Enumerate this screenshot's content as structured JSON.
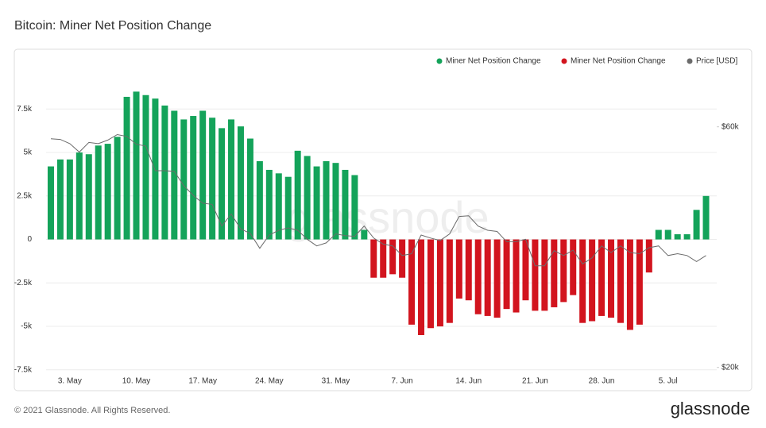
{
  "chart_data": {
    "type": "bar",
    "title": "Bitcoin: Miner Net Position Change",
    "footer": "© 2021 Glassnode. All Rights Reserved.",
    "logo": "glassnode",
    "watermark": "glassnode",
    "categories": [
      null,
      null,
      "3. May",
      null,
      null,
      null,
      null,
      null,
      null,
      "10. May",
      null,
      null,
      null,
      null,
      null,
      null,
      "17. May",
      null,
      null,
      null,
      null,
      null,
      null,
      "24. May",
      null,
      null,
      null,
      null,
      null,
      null,
      "31. May",
      null,
      null,
      null,
      null,
      null,
      null,
      "7. Jun",
      null,
      null,
      null,
      null,
      null,
      null,
      "14. Jun",
      null,
      null,
      null,
      null,
      null,
      null,
      "21. Jun",
      null,
      null,
      null,
      null,
      null,
      null,
      "28. Jun",
      null,
      null,
      null,
      null,
      null,
      null,
      "5. Jul",
      null,
      null,
      null,
      null
    ],
    "series": [
      {
        "name": "Miner Net Position Change",
        "color": "#14a35a",
        "values": [
          4200,
          4600,
          4600,
          5000,
          4900,
          5400,
          5500,
          5900,
          8200,
          8500,
          8300,
          8100,
          7700,
          7400,
          6900,
          7100,
          7400,
          7000,
          6400,
          6900,
          6500,
          5800,
          4500,
          4000,
          3800,
          3600,
          5100,
          4800,
          4200,
          4500,
          4400,
          4000,
          3700,
          550,
          null,
          null,
          null,
          null,
          null,
          null,
          null,
          null,
          null,
          null,
          null,
          null,
          null,
          null,
          null,
          null,
          null,
          null,
          null,
          null,
          null,
          null,
          null,
          null,
          null,
          null,
          null,
          null,
          null,
          null,
          550,
          550,
          300,
          300,
          1700,
          2500
        ]
      },
      {
        "name": "Miner Net Position Change",
        "color": "#d2141e",
        "values": [
          null,
          null,
          null,
          null,
          null,
          null,
          null,
          null,
          null,
          null,
          null,
          null,
          null,
          null,
          null,
          null,
          null,
          null,
          null,
          null,
          null,
          null,
          null,
          null,
          null,
          null,
          null,
          null,
          null,
          null,
          null,
          null,
          null,
          null,
          -2200,
          -2200,
          -2000,
          -2200,
          -4900,
          -5500,
          -5100,
          -5000,
          -4800,
          -3400,
          -3500,
          -4300,
          -4400,
          -4500,
          -4000,
          -4200,
          -3500,
          -4100,
          -4100,
          -3900,
          -3600,
          -3200,
          -4800,
          -4700,
          -4400,
          -4500,
          -4800,
          -5200,
          -4900,
          -1900,
          null,
          null,
          null,
          null,
          null,
          null
        ]
      },
      {
        "name": "Price [USD]",
        "color": "#6b6b6b",
        "axis": "y2",
        "type": "line",
        "values": [
          58000,
          57900,
          57200,
          55800,
          57400,
          57200,
          57800,
          58700,
          58400,
          57100,
          56800,
          52700,
          52700,
          52600,
          50200,
          48600,
          47300,
          47100,
          43500,
          45500,
          43000,
          42300,
          39800,
          42000,
          42800,
          43200,
          42800,
          41300,
          40200,
          40700,
          42200,
          41900,
          41800,
          43500,
          41500,
          40500,
          40200,
          38600,
          38900,
          42000,
          41500,
          41100,
          42200,
          45100,
          45200,
          43500,
          42800,
          42600,
          40900,
          40900,
          41300,
          36900,
          36900,
          39400,
          38600,
          39500,
          37200,
          38200,
          40200,
          39100,
          40200,
          39100,
          38900,
          39900,
          40200,
          38600,
          38900,
          38600,
          37600,
          38600
        ]
      }
    ],
    "ylim": [
      -7600,
      10800
    ],
    "yticks": [
      {
        "value": -7500,
        "label": "-7.5k"
      },
      {
        "value": -5000,
        "label": "-5k"
      },
      {
        "value": -2500,
        "label": "-2.5k"
      },
      0,
      {
        "value": 2500,
        "label": "2.5k"
      },
      {
        "value": 5000,
        "label": "5k"
      },
      {
        "value": 7500,
        "label": "7.5k"
      }
    ],
    "y2lim": [
      19300,
      72500
    ],
    "y2ticks": [
      {
        "value": 20000,
        "label": "$20k"
      },
      {
        "value": 60000,
        "label": "$60k"
      }
    ],
    "grid": true,
    "legend": "top-right"
  }
}
